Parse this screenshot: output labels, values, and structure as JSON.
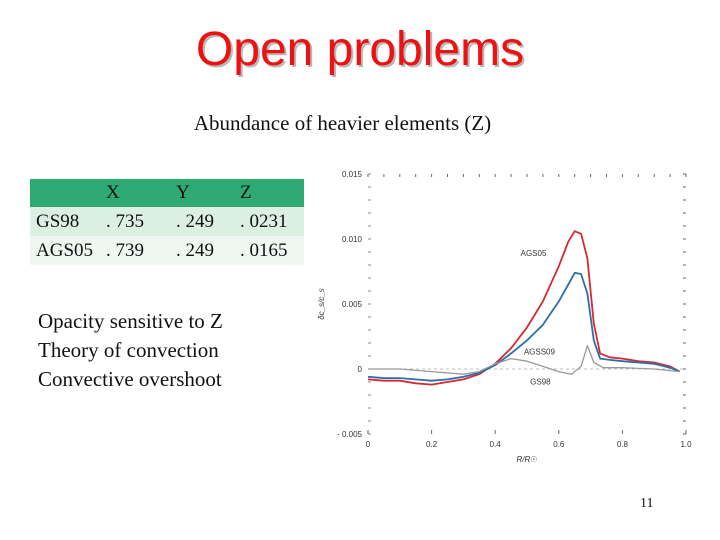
{
  "slide": {
    "title": "Open problems",
    "subtitle": "Abundance of heavier elements (Z)",
    "page_number": "11"
  },
  "table": {
    "headers": [
      "",
      "X",
      "Y",
      "Z"
    ],
    "rows": [
      [
        "GS98",
        ". 735",
        ". 249",
        ". 0231"
      ],
      [
        "AGS05",
        ". 739",
        ". 249",
        ". 0165"
      ]
    ]
  },
  "notes": [
    "Opacity sensitive to Z",
    "Theory of convection",
    "Convective overshoot"
  ],
  "colors": {
    "title": "#ee1111",
    "table_header": "#2eaa72",
    "ags05": "#d42a35",
    "agss09": "#2e6ea8",
    "gs98": "#999999"
  },
  "chart_data": {
    "type": "line",
    "xlabel": "R/R☉",
    "ylabel": "δc_s/c_s",
    "xlim": [
      0,
      1.0
    ],
    "ylim": [
      -0.005,
      0.015
    ],
    "x_ticks": [
      "0",
      "0.2",
      "0.4",
      "0.6",
      "0.8",
      "1.0"
    ],
    "y_ticks": [
      "- 0.005",
      "0",
      "0.005",
      "0.010",
      "0.015"
    ],
    "series": [
      {
        "name": "AGS05",
        "color": "#d42a35",
        "points": [
          [
            0.0,
            -0.0008
          ],
          [
            0.05,
            -0.0009
          ],
          [
            0.1,
            -0.0009
          ],
          [
            0.15,
            -0.0011
          ],
          [
            0.2,
            -0.0012
          ],
          [
            0.25,
            -0.001
          ],
          [
            0.3,
            -0.0008
          ],
          [
            0.35,
            -0.0004
          ],
          [
            0.4,
            0.0004
          ],
          [
            0.45,
            0.0016
          ],
          [
            0.5,
            0.0032
          ],
          [
            0.55,
            0.0052
          ],
          [
            0.6,
            0.0079
          ],
          [
            0.63,
            0.0098
          ],
          [
            0.65,
            0.0106
          ],
          [
            0.67,
            0.0104
          ],
          [
            0.69,
            0.0085
          ],
          [
            0.71,
            0.0035
          ],
          [
            0.73,
            0.0012
          ],
          [
            0.76,
            0.0009
          ],
          [
            0.8,
            0.0008
          ],
          [
            0.85,
            0.0006
          ],
          [
            0.9,
            0.0005
          ],
          [
            0.95,
            0.0002
          ],
          [
            0.98,
            -0.0002
          ]
        ]
      },
      {
        "name": "AGSS09",
        "color": "#2e6ea8",
        "points": [
          [
            0.0,
            -0.0006
          ],
          [
            0.05,
            -0.0007
          ],
          [
            0.1,
            -0.0007
          ],
          [
            0.15,
            -0.0008
          ],
          [
            0.2,
            -0.0009
          ],
          [
            0.25,
            -0.0008
          ],
          [
            0.3,
            -0.0006
          ],
          [
            0.35,
            -0.0003
          ],
          [
            0.4,
            0.0003
          ],
          [
            0.45,
            0.0012
          ],
          [
            0.5,
            0.0022
          ],
          [
            0.55,
            0.0034
          ],
          [
            0.6,
            0.0052
          ],
          [
            0.63,
            0.0065
          ],
          [
            0.65,
            0.0074
          ],
          [
            0.67,
            0.0073
          ],
          [
            0.69,
            0.0058
          ],
          [
            0.71,
            0.0022
          ],
          [
            0.73,
            0.0008
          ],
          [
            0.76,
            0.0007
          ],
          [
            0.8,
            0.0006
          ],
          [
            0.85,
            0.0005
          ],
          [
            0.9,
            0.0004
          ],
          [
            0.95,
            0.0001
          ],
          [
            0.98,
            -0.0002
          ]
        ]
      },
      {
        "name": "GS98",
        "color": "#999999",
        "points": [
          [
            0.0,
            0.0
          ],
          [
            0.1,
            0.0
          ],
          [
            0.2,
            -0.0002
          ],
          [
            0.3,
            -0.0004
          ],
          [
            0.35,
            -0.0002
          ],
          [
            0.4,
            0.0004
          ],
          [
            0.45,
            0.0008
          ],
          [
            0.5,
            0.0006
          ],
          [
            0.55,
            0.0002
          ],
          [
            0.6,
            -0.0002
          ],
          [
            0.64,
            -0.0004
          ],
          [
            0.67,
            0.0002
          ],
          [
            0.69,
            0.0018
          ],
          [
            0.71,
            0.0005
          ],
          [
            0.74,
            0.0001
          ],
          [
            0.8,
            0.0001
          ],
          [
            0.9,
            0.0
          ],
          [
            0.98,
            -0.0002
          ]
        ]
      }
    ]
  }
}
